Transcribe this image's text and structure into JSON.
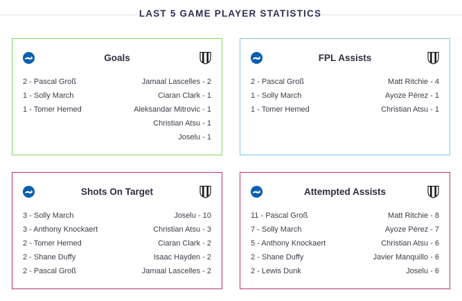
{
  "header": {
    "title": "LAST 5 GAME PLAYER STATISTICS"
  },
  "icons": {
    "home_team": "brighton-crest-icon",
    "away_team": "newcastle-crest-icon"
  },
  "colors": {
    "goals_border": "#7ed957",
    "fpl_border": "#7fc8e8",
    "shots_border": "#b2336f",
    "attempted_border": "#b2336f",
    "home_crest": "#0a5fb0"
  },
  "cards": {
    "goals": {
      "title": "Goals",
      "home": [
        "2 - Pascal Groß",
        "1 - Solly March",
        "1 - Tomer Hemed"
      ],
      "away": [
        "Jamaal Lascelles - 2",
        "Ciaran Clark - 1",
        "Aleksandar Mitrovic - 1",
        "Christian Atsu - 1",
        "Joselu - 1"
      ]
    },
    "fpl_assists": {
      "title": "FPL Assists",
      "home": [
        "2 - Pascal Groß",
        "1 - Solly March",
        "1 - Tomer Hemed"
      ],
      "away": [
        "Matt Ritchie - 4",
        "Ayoze Pérez - 1",
        "Christian Atsu - 1"
      ]
    },
    "shots_on_target": {
      "title": "Shots On Target",
      "home": [
        "3 - Solly March",
        "3 - Anthony Knockaert",
        "2 - Tomer Hemed",
        "2 - Shane Duffy",
        "2 - Pascal Groß"
      ],
      "away": [
        "Joselu - 10",
        "Christian Atsu - 3",
        "Ciaran Clark - 2",
        "Isaac Hayden - 2",
        "Jamaal Lascelles - 2"
      ]
    },
    "attempted_assists": {
      "title": "Attempted Assists",
      "home": [
        "11 - Pascal Groß",
        "7 - Solly March",
        "5 - Anthony Knockaert",
        "2 - Shane Duffy",
        "2 - Lewis Dunk"
      ],
      "away": [
        "Matt Ritchie - 8",
        "Ayoze Pérez - 7",
        "Christian Atsu - 6",
        "Javier Manquillo - 6",
        "Joselu - 6"
      ]
    }
  }
}
